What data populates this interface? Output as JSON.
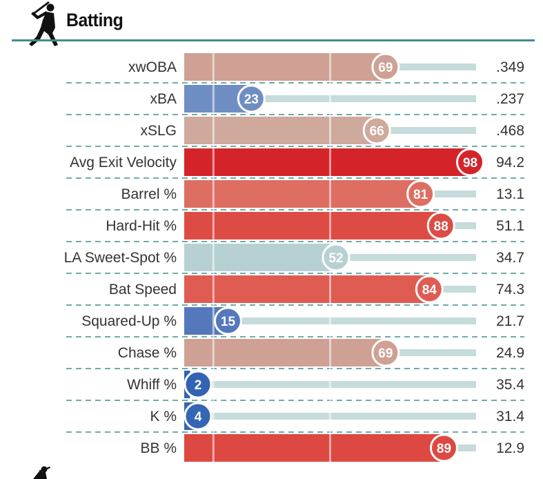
{
  "section": {
    "title": "Batting"
  },
  "icons": {
    "header": "batter-silhouette-icon",
    "footer": "batter-silhouette-icon"
  },
  "colors": {
    "header_rule": "#3f8f8a",
    "track": "#c6dbdb",
    "divider": "#3f8f8a",
    "scale": [
      "#2c5db0",
      "#b7d2d3",
      "#d52025"
    ]
  },
  "chart_data": {
    "type": "bar",
    "orientation": "horizontal",
    "title": "Batting",
    "xlim": [
      0,
      100
    ],
    "ylabel": "",
    "xlabel": "",
    "categories": [
      "xwOBA",
      "xBA",
      "xSLG",
      "Avg Exit Velocity",
      "Barrel %",
      "Hard-Hit %",
      "LA Sweet-Spot %",
      "Bat Speed",
      "Squared-Up %",
      "Chase %",
      "Whiff %",
      "K %",
      "BB %"
    ],
    "series": [
      {
        "values": [
          69,
          23,
          66,
          98,
          81,
          88,
          52,
          84,
          15,
          69,
          2,
          4,
          89
        ]
      }
    ],
    "stat_values": [
      ".349",
      ".237",
      ".468",
      "94.2",
      "13.1",
      "51.1",
      "34.7",
      "74.3",
      "21.7",
      "24.9",
      "35.4",
      "31.4",
      "12.9"
    ],
    "reference_lines": [
      10,
      50
    ],
    "bar_colors": [
      "#cfa094",
      "#6e8ec3",
      "#cfa99c",
      "#d52429",
      "#de6e62",
      "#dd4c44",
      "#b7d1d3",
      "#de5c52",
      "#5578bd",
      "#cfa094",
      "#3263b4",
      "#3566b6",
      "#dd4942"
    ]
  }
}
